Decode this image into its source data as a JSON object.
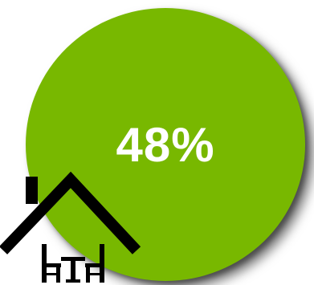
{
  "stat": {
    "percent_label": "48%",
    "percent_value": 48,
    "color": "#78b800",
    "text_color": "#ffffff"
  },
  "icon": {
    "name": "house-dining-icon",
    "color": "#000000"
  }
}
